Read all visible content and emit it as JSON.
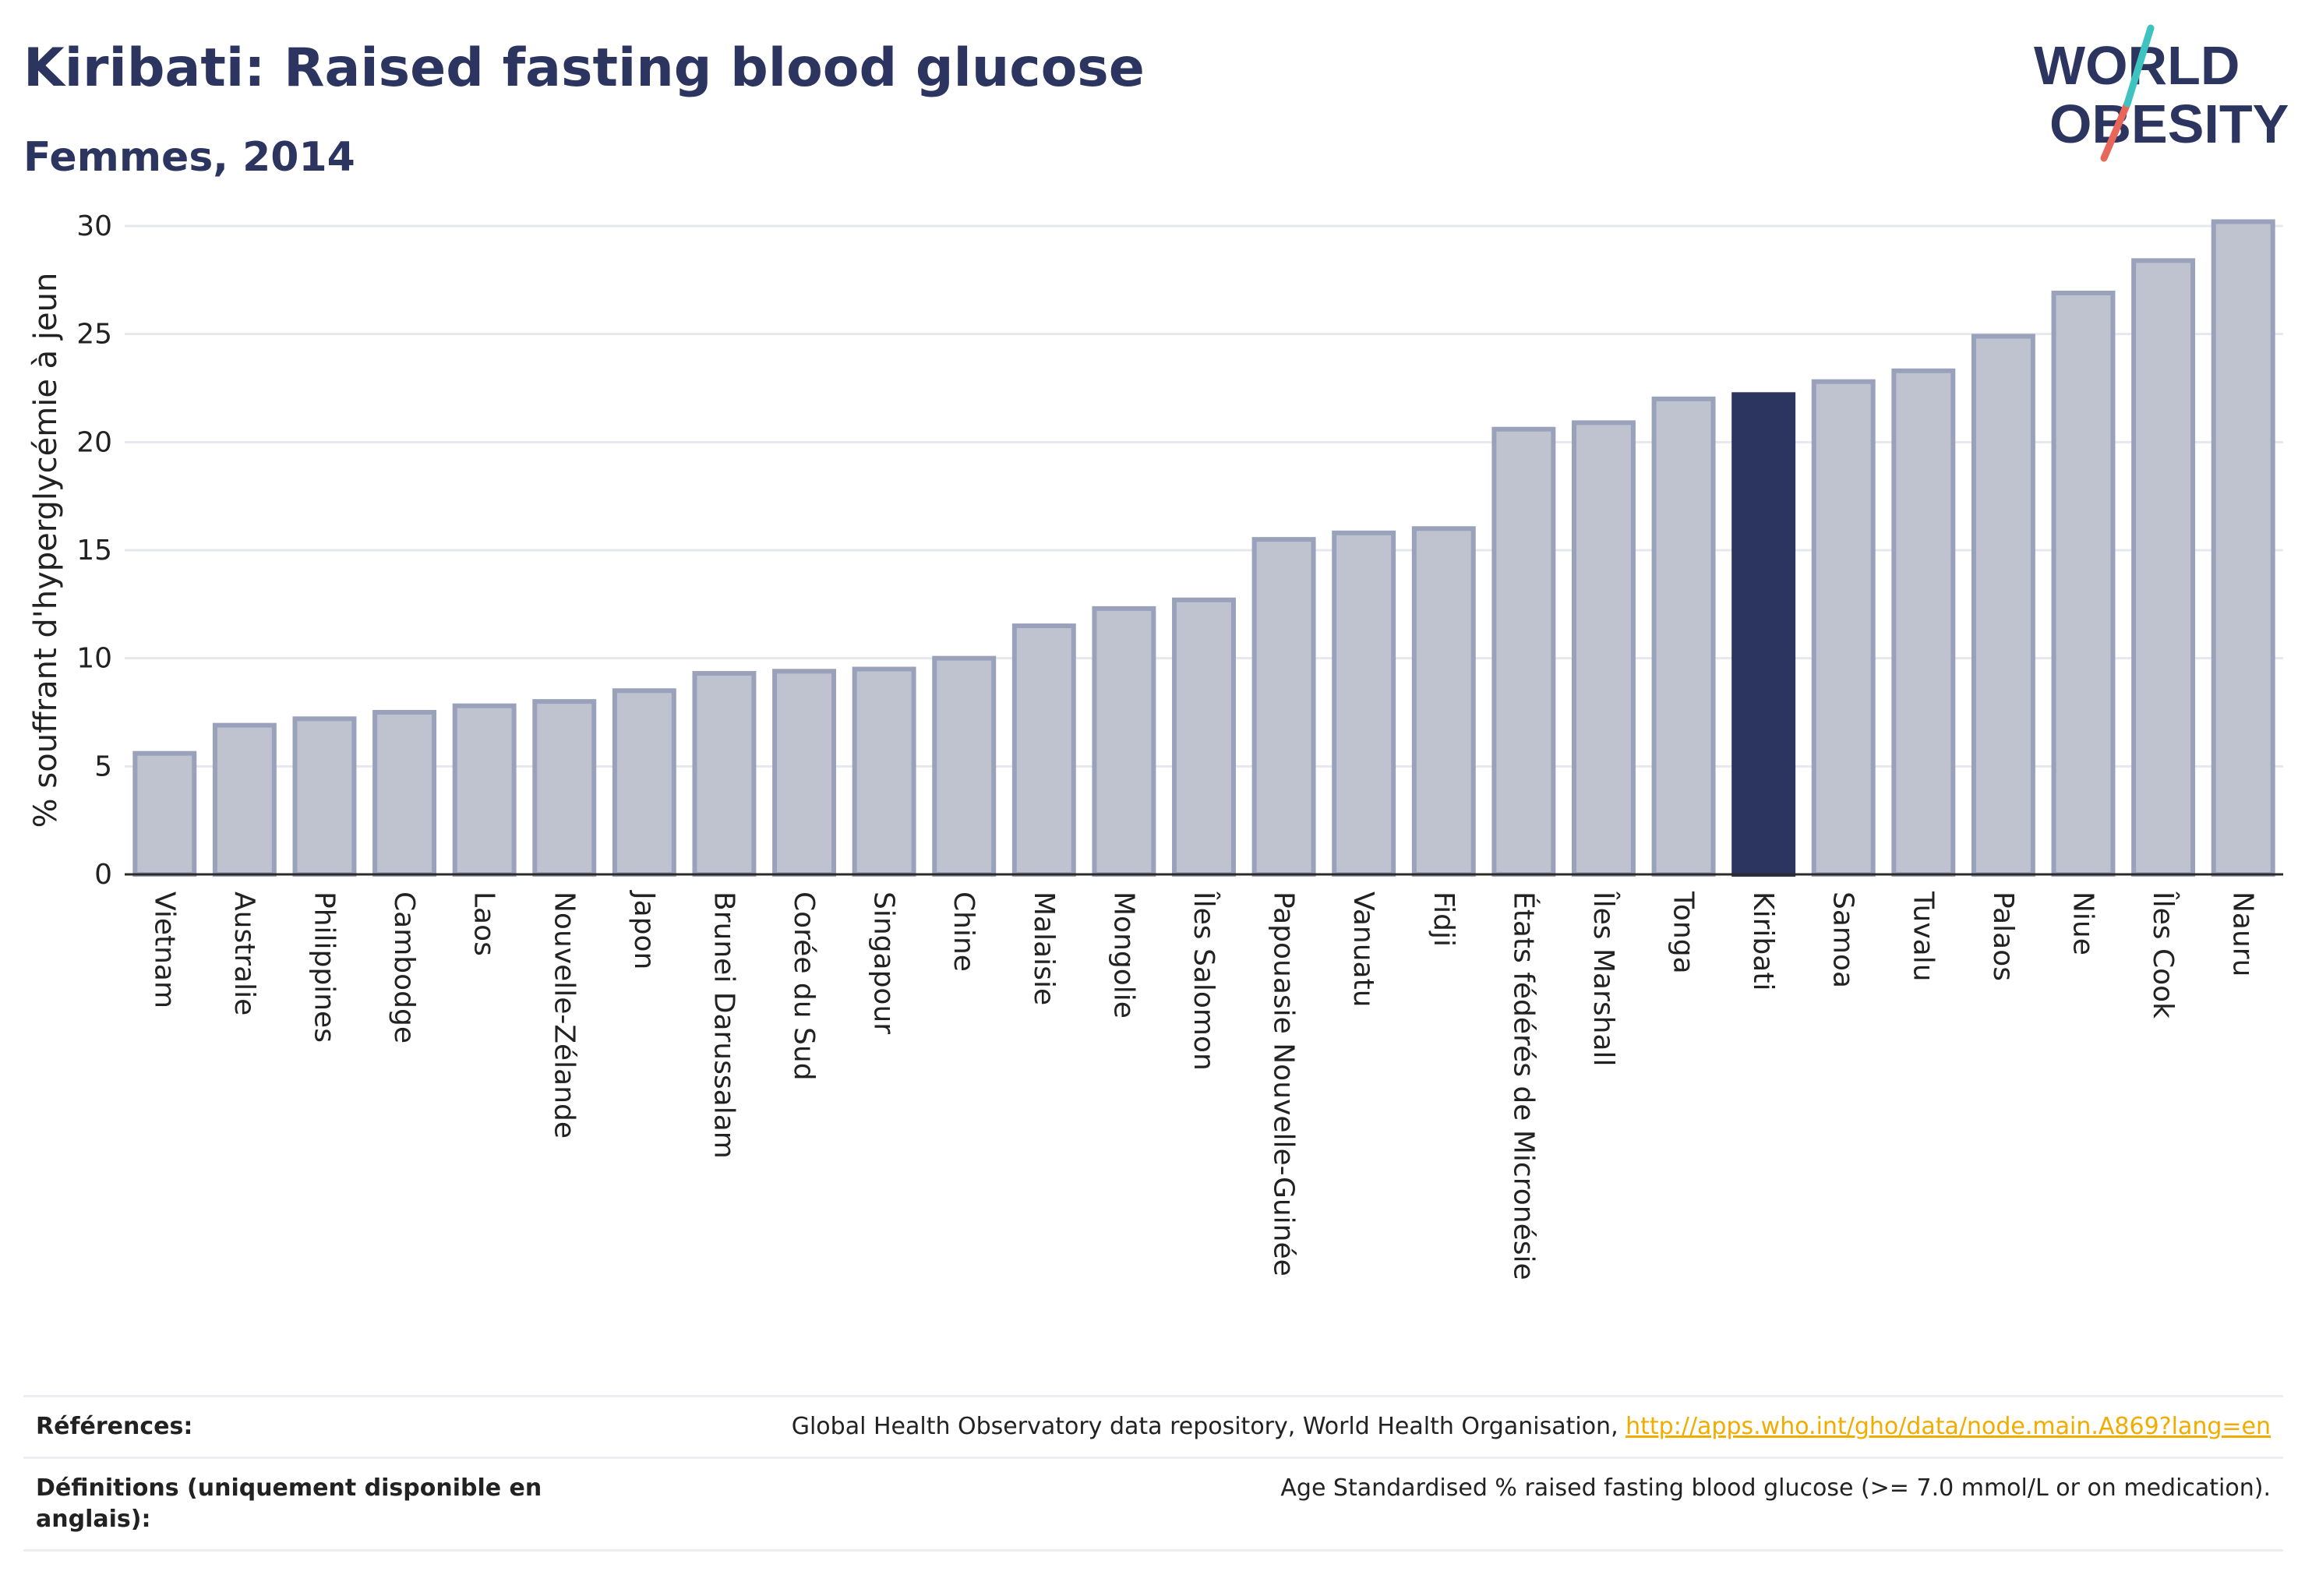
{
  "title": "Kiribati: Raised fasting blood glucose",
  "subtitle": "Femmes, 2014",
  "logo": {
    "line1": "WORLD",
    "line2": "OBESITY"
  },
  "colors": {
    "highlight": "#2b3560",
    "bar_fill": "#bfc3d0",
    "bar_stroke": "#9aa1bb",
    "grid": "#e6e8ee",
    "link": "#f0ad00",
    "logo_teal": "#3ec3c0",
    "logo_red": "#e8675a"
  },
  "chart_data": {
    "type": "bar",
    "ylabel": "% souffrant d'hyperglycémie à jeun",
    "ylim": [
      0,
      30
    ],
    "yticks": [
      0,
      5,
      10,
      15,
      20,
      25,
      30
    ],
    "highlight": "Kiribati",
    "categories": [
      "Vietnam",
      "Australie",
      "Philippines",
      "Cambodge",
      "Laos",
      "Nouvelle-Zélande",
      "Japon",
      "Brunei Darussalam",
      "Corée du Sud",
      "Singapour",
      "Chine",
      "Malaisie",
      "Mongolie",
      "Îles Salomon",
      "Papouasie Nouvelle-Guinée",
      "Vanuatu",
      "Fidji",
      "États fédérés de Micronésie",
      "Îles Marshall",
      "Tonga",
      "Kiribati",
      "Samoa",
      "Tuvalu",
      "Palaos",
      "Niue",
      "Îles Cook",
      "Nauru"
    ],
    "values": [
      5.6,
      6.9,
      7.2,
      7.5,
      7.8,
      8.0,
      8.5,
      9.3,
      9.4,
      9.5,
      10.0,
      11.5,
      12.3,
      12.7,
      15.5,
      15.8,
      16.0,
      20.6,
      20.9,
      22.0,
      22.2,
      22.8,
      23.3,
      24.9,
      26.9,
      28.4,
      30.2
    ]
  },
  "footer": {
    "references_label": "Références:",
    "references_text": "Global Health Observatory data repository, World Health Organisation, ",
    "references_link": "http://apps.who.int/gho/data/node.main.A869?lang=en",
    "definitions_label": "Définitions (uniquement disponible en anglais):",
    "definitions_text": "Age Standardised % raised fasting blood glucose (>= 7.0 mmol/L or on medication)."
  }
}
